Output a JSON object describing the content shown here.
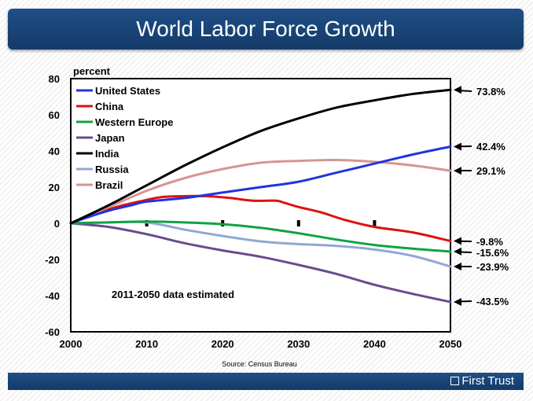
{
  "title": "World Labor Force Growth",
  "brand": "First Trust",
  "source": "Source: Census Bureau",
  "chart_data": {
    "type": "line",
    "ylabel": "percent",
    "xlabel": "",
    "xlim": [
      2000,
      2050
    ],
    "ylim": [
      -60,
      80
    ],
    "x_ticks": [
      2000,
      2010,
      2020,
      2030,
      2040,
      2050
    ],
    "y_ticks": [
      80,
      60,
      40,
      20,
      0,
      -20,
      -40,
      -60
    ],
    "grid": false,
    "legend_position": "top-left",
    "annotation": "2011-2050 data estimated",
    "series": [
      {
        "name": "United States",
        "color": "#2233dd",
        "x": [
          2000,
          2002,
          2005,
          2008,
          2010,
          2015,
          2020,
          2025,
          2030,
          2035,
          2040,
          2045,
          2050
        ],
        "values": [
          0,
          3,
          7,
          10,
          12,
          14,
          17,
          20,
          23,
          28,
          33,
          38,
          42.4
        ],
        "end_label": "42.4%"
      },
      {
        "name": "China",
        "color": "#dd1111",
        "x": [
          2000,
          2003,
          2006,
          2009,
          2012,
          2015,
          2018,
          2021,
          2024,
          2027,
          2028,
          2030,
          2033,
          2036,
          2040,
          2045,
          2050
        ],
        "values": [
          0,
          5,
          9,
          12,
          14.5,
          15,
          15,
          14,
          12.5,
          12.5,
          11.5,
          9,
          6,
          2,
          -2,
          -5,
          -9.8
        ],
        "end_label": "-9.8%"
      },
      {
        "name": "Western Europe",
        "color": "#11a244",
        "x": [
          2000,
          2005,
          2010,
          2015,
          2020,
          2025,
          2030,
          2035,
          2040,
          2045,
          2050
        ],
        "values": [
          0,
          0.5,
          1,
          0.5,
          -0.5,
          -2.5,
          -5.5,
          -9,
          -12,
          -14,
          -15.6
        ],
        "end_label": "-15.6%"
      },
      {
        "name": "Japan",
        "color": "#6a4a90",
        "x": [
          2000,
          2005,
          2010,
          2015,
          2020,
          2025,
          2030,
          2035,
          2040,
          2045,
          2050
        ],
        "values": [
          0,
          -2,
          -6,
          -11,
          -15,
          -18.5,
          -23,
          -28,
          -34,
          -39,
          -43.5
        ],
        "end_label": "-43.5%"
      },
      {
        "name": "India",
        "color": "#000000",
        "x": [
          2000,
          2005,
          2010,
          2015,
          2020,
          2025,
          2030,
          2035,
          2040,
          2045,
          2050
        ],
        "values": [
          0,
          10,
          21,
          32,
          42,
          51,
          58,
          64,
          68,
          71.5,
          73.8
        ],
        "end_label": "73.8%"
      },
      {
        "name": "Russia",
        "color": "#8fa8d6",
        "x": [
          2000,
          2005,
          2010,
          2015,
          2020,
          2025,
          2030,
          2035,
          2040,
          2045,
          2050
        ],
        "values": [
          0,
          0.5,
          0.5,
          -3.5,
          -7,
          -10,
          -11.5,
          -12.5,
          -14.5,
          -18,
          -23.9
        ],
        "end_label": "-23.9%"
      },
      {
        "name": "Brazil",
        "color": "#d69590",
        "x": [
          2000,
          2005,
          2010,
          2015,
          2020,
          2025,
          2030,
          2035,
          2040,
          2045,
          2050
        ],
        "values": [
          0,
          9,
          18,
          25,
          30,
          33.5,
          34.5,
          35,
          34,
          32,
          29.1
        ],
        "end_label": "29.1%"
      }
    ]
  }
}
